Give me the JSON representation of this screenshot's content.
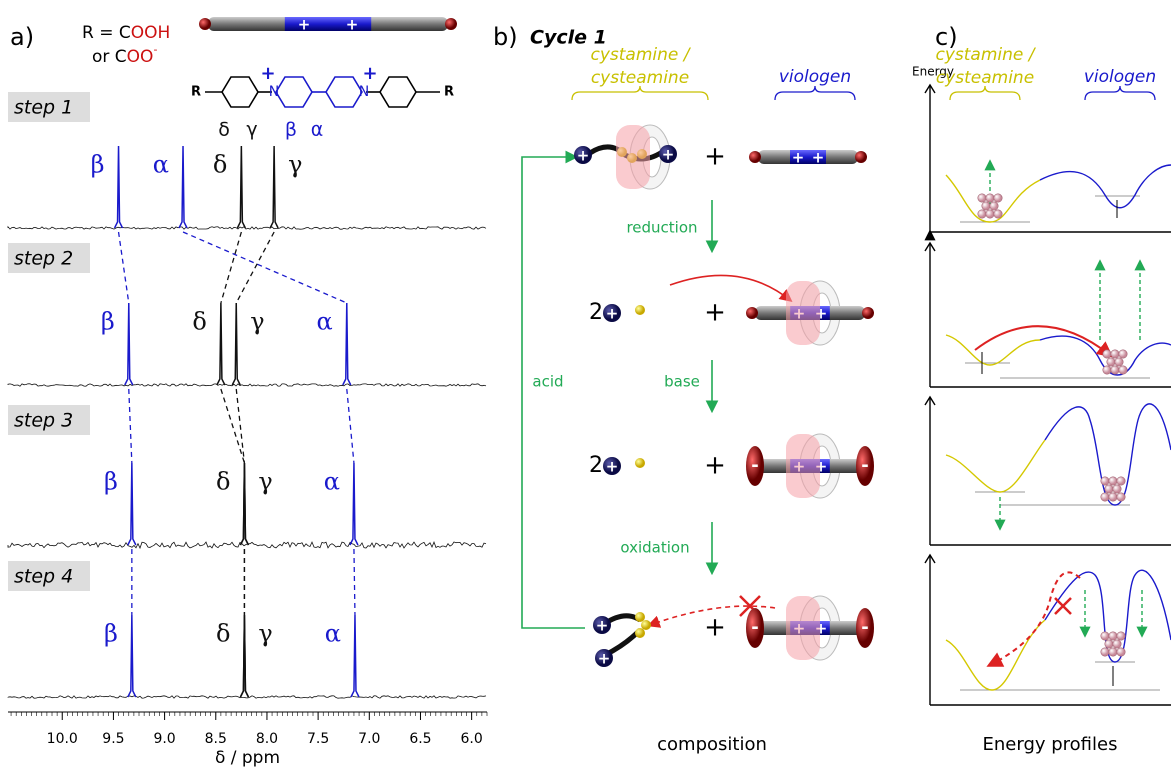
{
  "panel_a": {
    "label": "a)",
    "r_definition": {
      "line1": "R = C",
      "line1_red": "OOH",
      "line2": "or C",
      "line2_red": "OO",
      "line2_sup": "-"
    },
    "structure": {
      "r": "R",
      "n": "N",
      "charge": "+",
      "positions": [
        "δ",
        "γ",
        "β",
        "α"
      ]
    },
    "steps": [
      {
        "label": "step 1",
        "peaks": [
          {
            "label": "β",
            "ppm": 9.45,
            "color": "#1a1acc"
          },
          {
            "label": "α",
            "ppm": 8.82,
            "color": "#1a1acc"
          },
          {
            "label": "δ",
            "ppm": 8.25,
            "color": "#111111"
          },
          {
            "label": "γ",
            "ppm": 7.93,
            "color": "#111111"
          }
        ]
      },
      {
        "label": "step 2",
        "peaks": [
          {
            "label": "β",
            "ppm": 9.35,
            "color": "#1a1acc"
          },
          {
            "label": "δ",
            "ppm": 8.45,
            "color": "#111111"
          },
          {
            "label": "γ",
            "ppm": 8.3,
            "color": "#111111"
          },
          {
            "label": "α",
            "ppm": 7.22,
            "color": "#1a1acc"
          }
        ]
      },
      {
        "label": "step 3",
        "peaks": [
          {
            "label": "β",
            "ppm": 9.32,
            "color": "#1a1acc"
          },
          {
            "label": "δ",
            "ppm": 8.22,
            "color": "#111111"
          },
          {
            "label": "γ",
            "ppm": 8.22,
            "color": "#111111"
          },
          {
            "label": "α",
            "ppm": 7.15,
            "color": "#1a1acc"
          }
        ]
      },
      {
        "label": "step 4",
        "peaks": [
          {
            "label": "β",
            "ppm": 9.32,
            "color": "#1a1acc"
          },
          {
            "label": "δ",
            "ppm": 8.22,
            "color": "#111111"
          },
          {
            "label": "γ",
            "ppm": 8.22,
            "color": "#111111"
          },
          {
            "label": "α",
            "ppm": 7.14,
            "color": "#1a1acc"
          }
        ]
      }
    ],
    "axis": {
      "label": "δ / ppm",
      "xlim": [
        10.53,
        5.85
      ],
      "ticks": [
        {
          "value": 10,
          "label": "10.0"
        },
        9.5,
        {
          "value": 9,
          "label": "9.0"
        },
        8.5,
        {
          "value": 8,
          "label": "8.0"
        },
        7.5,
        {
          "value": 7,
          "label": "7.0"
        },
        6.5,
        {
          "value": 6,
          "label": "6.0"
        }
      ]
    }
  },
  "panel_b": {
    "label": "b)",
    "title": "Cycle 1",
    "left_group": [
      "cystamine /",
      "cysteamine"
    ],
    "right_group": "viologen",
    "steps": [
      "reduction",
      "base",
      "oxidation"
    ],
    "return_step": "acid",
    "coefficient": "2",
    "plus": "+",
    "minus": "-",
    "caption": "composition"
  },
  "panel_c": {
    "label": "c)",
    "y_axis": "Energy",
    "left_group": [
      "cystamine /",
      "cysteamine"
    ],
    "right_group": "viologen",
    "caption": "Energy profiles"
  }
}
